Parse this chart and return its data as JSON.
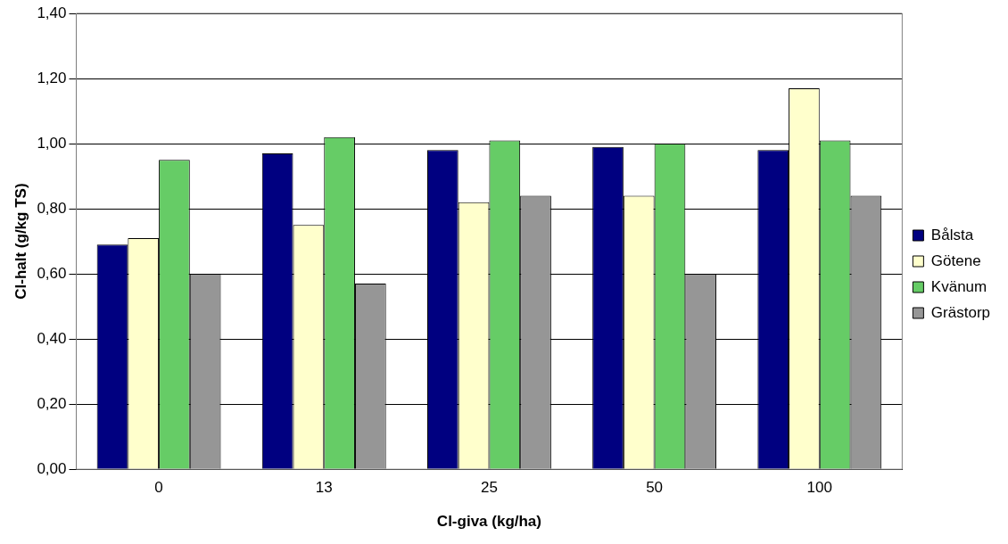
{
  "chart_data": {
    "type": "bar",
    "xlabel": "Cl-giva (kg/ha)",
    "ylabel": "Cl-halt (g/kg TS)",
    "categories": [
      "0",
      "13",
      "25",
      "50",
      "100"
    ],
    "series": [
      {
        "name": "Bålsta",
        "color": "#000080",
        "values": [
          0.69,
          0.97,
          0.98,
          0.99,
          0.98
        ]
      },
      {
        "name": "Götene",
        "color": "#ffffcc",
        "values": [
          0.71,
          0.75,
          0.82,
          0.84,
          1.17
        ]
      },
      {
        "name": "Kvänum",
        "color": "#66cc66",
        "values": [
          0.95,
          1.02,
          1.01,
          1.0,
          1.01
        ]
      },
      {
        "name": "Grästorp",
        "color": "#969696",
        "values": [
          0.6,
          0.57,
          0.84,
          0.6,
          0.84
        ]
      }
    ],
    "ylim": [
      0,
      1.4
    ],
    "yticks": [
      {
        "value": 0,
        "label": "0,00"
      },
      {
        "value": 0.2,
        "label": "0,20"
      },
      {
        "value": 0.4,
        "label": "0,40"
      },
      {
        "value": 0.6,
        "label": "0,60"
      },
      {
        "value": 0.8,
        "label": "0,80"
      },
      {
        "value": 1.0,
        "label": "1,00"
      },
      {
        "value": 1.2,
        "label": "1,20"
      },
      {
        "value": 1.4,
        "label": "1,40"
      }
    ],
    "grid": "y",
    "legend": "right"
  }
}
